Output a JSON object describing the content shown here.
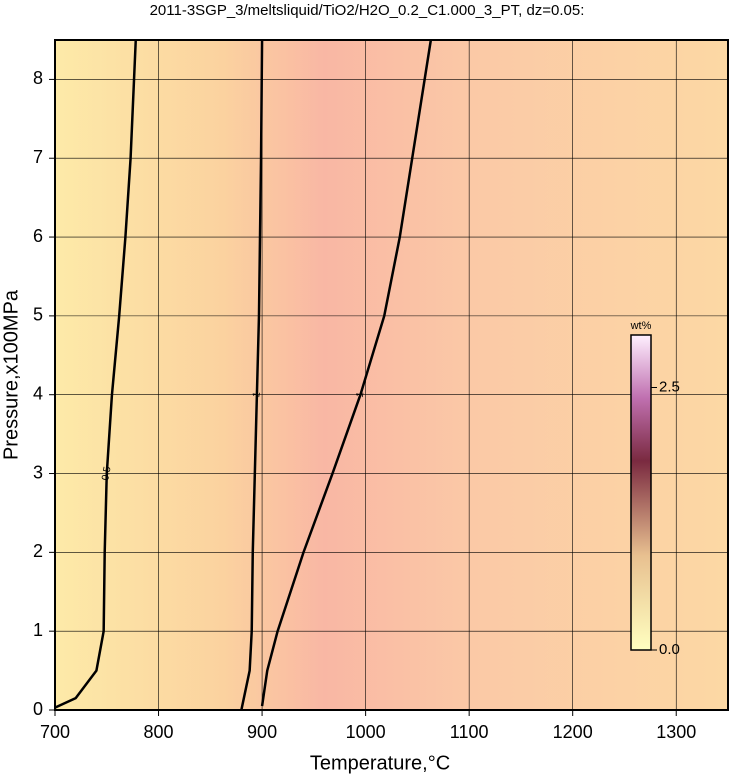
{
  "chart_data": {
    "type": "contour",
    "title": "2011-3SGP_3/meltsliquid/TiO2/H2O_0.2_C1.000_3_PT, dz=0.05:",
    "x_label": "Temperature,°C",
    "y_label": "Pressure,x100MPa",
    "xlim": [
      700,
      1350
    ],
    "ylim": [
      0,
      8.5
    ],
    "xticks": [
      700,
      800,
      900,
      1000,
      1100,
      1200,
      1300
    ],
    "yticks": [
      0,
      1,
      2,
      3,
      4,
      5,
      6,
      7,
      8
    ],
    "grid": true,
    "contours": [
      {
        "level": 0.5,
        "x": [
          700,
          720,
          740,
          747,
          748,
          750,
          755,
          762,
          768,
          773,
          778
        ],
        "y": [
          0.03,
          0.15,
          0.5,
          1,
          2,
          3,
          4,
          5,
          6,
          7,
          8.5
        ]
      },
      {
        "level": 1,
        "x": [
          880,
          888,
          890,
          891,
          893,
          895,
          897,
          898,
          899,
          900
        ],
        "y": [
          0,
          0.5,
          1,
          2,
          3,
          4,
          5,
          6,
          7,
          8.5
        ]
      },
      {
        "level": 1,
        "x": [
          900,
          905,
          915,
          940,
          968,
          995,
          1018,
          1033,
          1045,
          1063
        ],
        "y": [
          0.05,
          0.5,
          1,
          2,
          3,
          4,
          5,
          6,
          7,
          8.5
        ]
      }
    ],
    "colorbar": {
      "label": "wt%",
      "lim": [
        0,
        3.0
      ],
      "ticks": [
        {
          "value": 0,
          "label": "0.0"
        },
        2.5
      ]
    }
  }
}
